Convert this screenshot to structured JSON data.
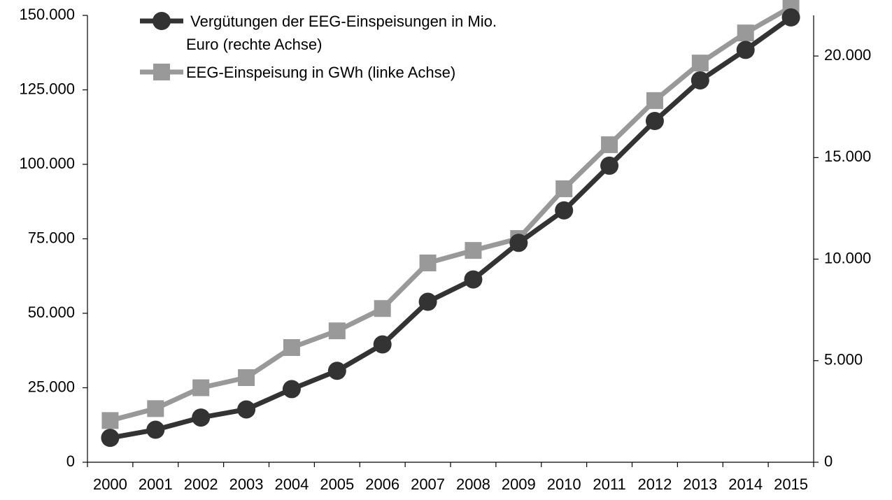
{
  "chart_data": {
    "type": "line",
    "categories": [
      "2000",
      "2001",
      "2002",
      "2003",
      "2004",
      "2005",
      "2006",
      "2007",
      "2008",
      "2009",
      "2010",
      "2011",
      "2012",
      "2013",
      "2014",
      "2015"
    ],
    "series": [
      {
        "name": " Vergütungen der EEG-Einspeisungen in Mio. Euro (rechte Achse)",
        "color": "#333333",
        "marker": "circle",
        "axis": "y2",
        "values": [
          1200,
          1600,
          2200,
          2600,
          3600,
          4500,
          5800,
          7900,
          9000,
          10800,
          12400,
          14600,
          16800,
          18800,
          20300,
          21900
        ]
      },
      {
        "name": "EEG-Einspeisung in GWh (linke Achse)",
        "color": "#999999",
        "marker": "square",
        "axis": "y",
        "values": [
          14000,
          18000,
          25000,
          28400,
          38500,
          44100,
          51600,
          66900,
          71100,
          75100,
          91800,
          106600,
          121400,
          134000,
          144100,
          152800
        ]
      }
    ],
    "ylim": [
      0,
      150000
    ],
    "yticks": [
      0,
      {
        "value": 25000,
        "label": "25.000"
      },
      {
        "value": 50000,
        "label": "50.000"
      },
      {
        "value": 75000,
        "label": "75.000"
      },
      {
        "value": 100000,
        "label": "100.000"
      },
      {
        "value": 125000,
        "label": "125.000"
      },
      {
        "value": 150000,
        "label": "150.000"
      }
    ],
    "y2lim": [
      0,
      22000
    ],
    "y2ticks": [
      0,
      {
        "value": 5000,
        "label": "5.000"
      },
      {
        "value": 10000,
        "label": "10.000"
      },
      {
        "value": 15000,
        "label": "15.000"
      },
      {
        "value": 20000,
        "label": "20.000"
      }
    ],
    "grid": false,
    "legend": "upper left"
  }
}
